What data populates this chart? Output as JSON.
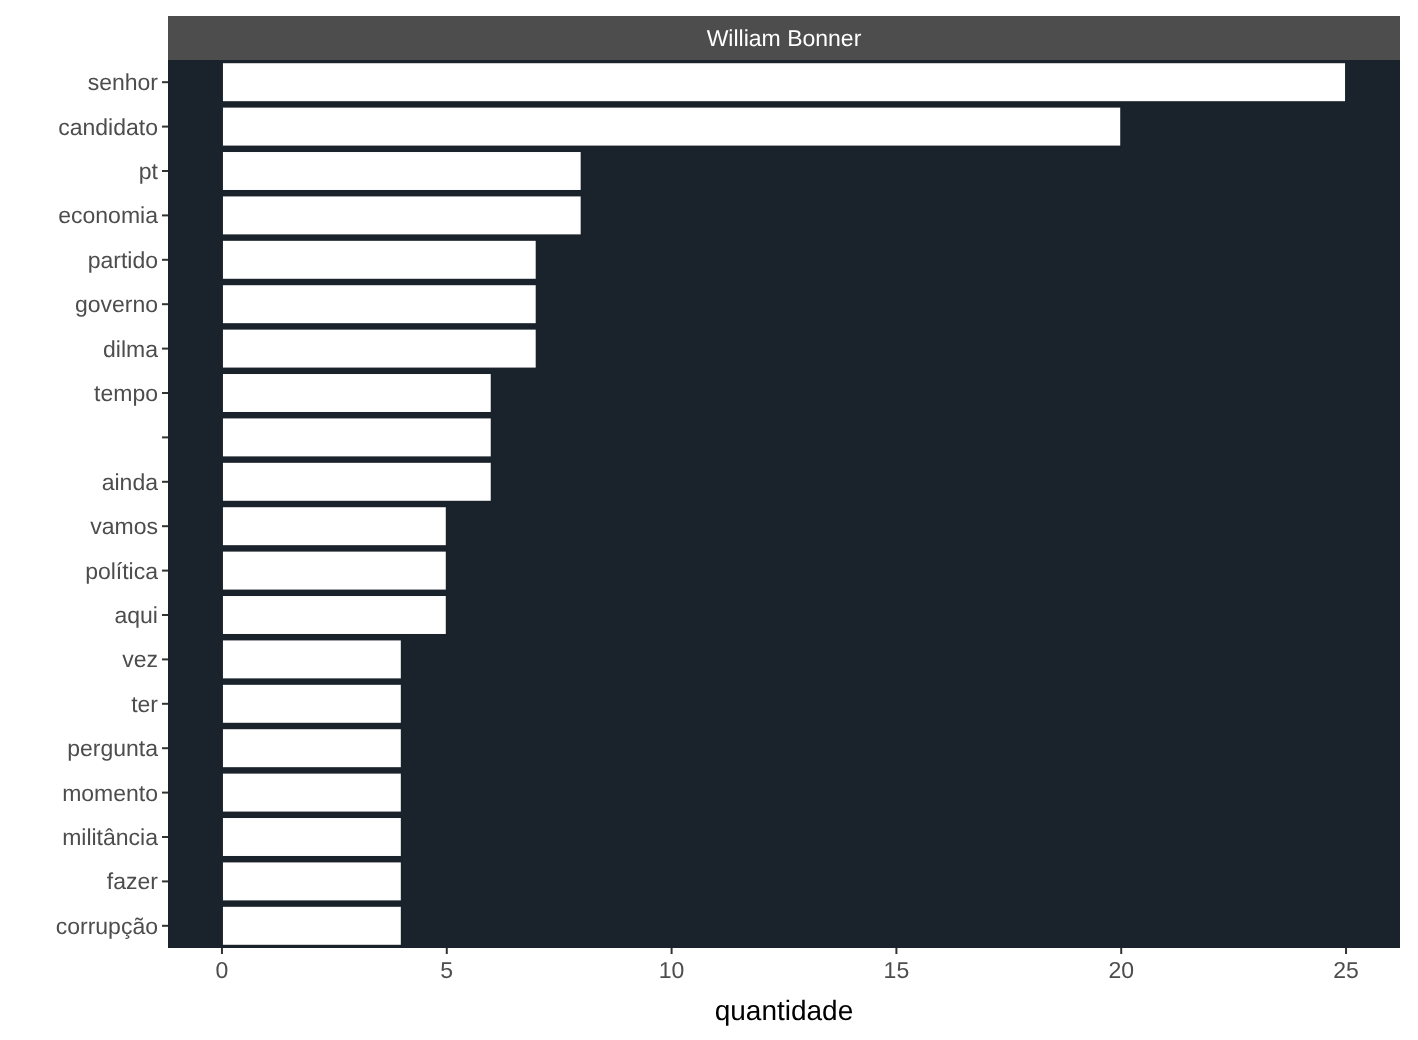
{
  "chart_data": {
    "type": "bar",
    "orientation": "horizontal",
    "title": "William Bonner",
    "xlabel": "quantidade",
    "categories": [
      "senhor",
      "candidato",
      "pt",
      "economia",
      "partido",
      "governo",
      "dilma",
      "tempo",
      null,
      "ainda",
      "vamos",
      "política",
      "aqui",
      "vez",
      "ter",
      "pergunta",
      "momento",
      "militância",
      "fazer",
      "corrupção"
    ],
    "values": [
      25,
      20,
      8,
      8,
      7,
      7,
      7,
      6,
      6,
      6,
      5,
      5,
      5,
      4,
      4,
      4,
      4,
      4,
      4,
      4
    ],
    "color": "#ffffff",
    "xlim": [
      -1.2,
      26.2
    ],
    "xticks": [
      0,
      5,
      10,
      15,
      20,
      25
    ]
  }
}
